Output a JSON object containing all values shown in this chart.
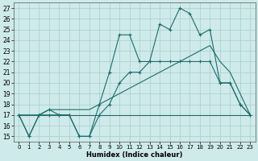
{
  "xlabel": "Humidex (Indice chaleur)",
  "xlim": [
    -0.5,
    23.5
  ],
  "ylim": [
    14.5,
    27.5
  ],
  "xticks": [
    0,
    1,
    2,
    3,
    4,
    5,
    6,
    7,
    8,
    9,
    10,
    11,
    12,
    13,
    14,
    15,
    16,
    17,
    18,
    19,
    20,
    21,
    22,
    23
  ],
  "yticks": [
    15,
    16,
    17,
    18,
    19,
    20,
    21,
    22,
    23,
    24,
    25,
    26,
    27
  ],
  "bg_color": "#ceeaea",
  "line_color": "#1e6b6b",
  "grid_color": "#aacccc",
  "series": [
    {
      "x": [
        0,
        1,
        2,
        3,
        4,
        5,
        6,
        7,
        8,
        9,
        10,
        11,
        12,
        13,
        14,
        15,
        16,
        17,
        18,
        19,
        20,
        21,
        22,
        23
      ],
      "y": [
        17,
        15,
        17,
        17.5,
        17,
        17,
        15,
        15,
        18,
        21,
        24.5,
        24.5,
        22,
        22,
        25.5,
        25,
        27,
        26.5,
        24.5,
        25,
        20,
        20,
        18,
        17
      ],
      "marker": "+"
    },
    {
      "x": [
        0,
        1,
        2,
        3,
        4,
        5,
        6,
        7,
        8,
        9,
        10,
        11,
        12,
        13,
        14,
        15,
        16,
        17,
        18,
        19,
        20,
        21,
        22,
        23
      ],
      "y": [
        17,
        17,
        17,
        17.5,
        17.5,
        17.5,
        17.5,
        17.5,
        18,
        18.5,
        19,
        19.5,
        20,
        20.5,
        21,
        21.5,
        22,
        22.5,
        23,
        23.5,
        22,
        21,
        19,
        17
      ],
      "marker": null
    },
    {
      "x": [
        0,
        23
      ],
      "y": [
        17,
        17
      ],
      "marker": null
    },
    {
      "x": [
        0,
        1,
        2,
        3,
        4,
        5,
        6,
        7,
        8,
        9,
        10,
        11,
        12,
        13,
        14,
        15,
        16,
        17,
        18,
        19,
        20,
        21,
        22,
        23
      ],
      "y": [
        17,
        15,
        17,
        17,
        17,
        17,
        15,
        15,
        17,
        18,
        20,
        21,
        21,
        22,
        22,
        22,
        22,
        22,
        22,
        22,
        20,
        20,
        18,
        17
      ],
      "marker": "+"
    }
  ]
}
